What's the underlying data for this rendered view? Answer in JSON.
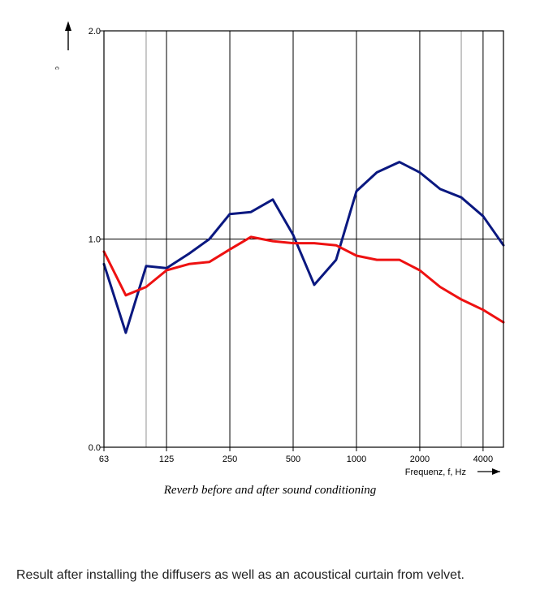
{
  "chart_data": {
    "type": "line",
    "title": "",
    "xlabel": "Frequenz, f, Hz",
    "ylabel": "",
    "x_scale": "log",
    "xlim": [
      63,
      5000
    ],
    "ylim": [
      0,
      2
    ],
    "grid": true,
    "legend": "none",
    "x_tick_labels": [
      "63",
      "125",
      "250",
      "500",
      "1000",
      "2000",
      "4000"
    ],
    "x_tick_values": [
      63,
      125,
      250,
      500,
      1000,
      2000,
      4000
    ],
    "extra_vlines": [
      100,
      3150
    ],
    "y_tick_labels": [
      "0.0",
      "1.0",
      "2.0"
    ],
    "y_tick_values": [
      0,
      1,
      2
    ],
    "y_arrow_glyph": "ᵓ",
    "x": [
      63,
      80,
      100,
      125,
      160,
      200,
      250,
      315,
      400,
      500,
      630,
      800,
      1000,
      1250,
      1600,
      2000,
      2500,
      3150,
      4000,
      5000
    ],
    "series": [
      {
        "color": "#0a1880",
        "values": [
          0.88,
          0.55,
          0.87,
          0.86,
          0.93,
          1.0,
          1.12,
          1.13,
          1.19,
          1.02,
          0.78,
          0.9,
          1.23,
          1.32,
          1.37,
          1.32,
          1.24,
          1.2,
          1.11,
          0.97
        ]
      },
      {
        "color": "#ee1111",
        "values": [
          0.94,
          0.73,
          0.77,
          0.85,
          0.88,
          0.89,
          0.95,
          1.01,
          0.99,
          0.98,
          0.98,
          0.97,
          0.92,
          0.9,
          0.9,
          0.85,
          0.77,
          0.71,
          0.66,
          0.6
        ]
      }
    ]
  },
  "caption": "Reverb before and after sound conditioning",
  "result_text": "Result after installing the diffusers as well as an acoustical curtain from velvet."
}
